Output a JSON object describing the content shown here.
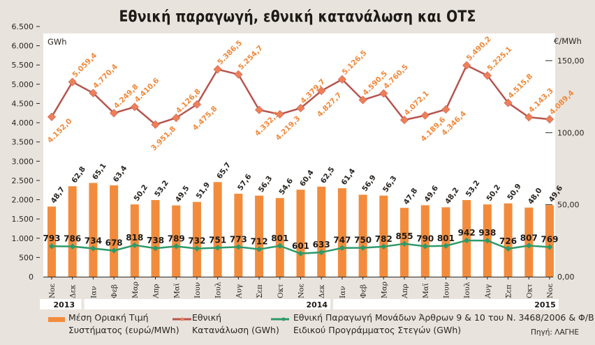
{
  "chart_data": {
    "type": "bar+line",
    "title": "Εθνική παραγωγή, εθνική κατανάλωση και ΟΤΣ",
    "left_axis": {
      "label": "GWh",
      "min": 0,
      "max": 6500,
      "ticks": [
        "0",
        "500",
        "1.000",
        "1.500",
        "2.000",
        "2.500",
        "3.000",
        "3.500",
        "4.000",
        "4.500",
        "5.000",
        "5.500",
        "6.000",
        "6.500"
      ],
      "tick_values": [
        0,
        500,
        1000,
        1500,
        2000,
        2500,
        3000,
        3500,
        4000,
        4500,
        5000,
        5500,
        6000,
        6500
      ]
    },
    "right_axis": {
      "label": "€/MWh",
      "min": 0,
      "max": 150,
      "ticks": [
        "0,00",
        "50,00",
        "100,00",
        "150,00"
      ],
      "tick_values": [
        0,
        50,
        100,
        150
      ]
    },
    "categories": [
      "Νοε",
      "Δεκ",
      "Ιαν",
      "Φεβ",
      "Μαρ",
      "Απρ",
      "Μαϊ",
      "Ιουν",
      "Ιουλ",
      "Αυγ",
      "Σεπ",
      "Οκτ",
      "Νοε",
      "Δεκ",
      "Ιαν",
      "Φεβ",
      "Μαρ",
      "Απρ",
      "Μαϊ",
      "Ιουν",
      "Ιουλ",
      "Αυγ",
      "Σεπ",
      "Οκτ",
      "Νοε"
    ],
    "years": [
      {
        "label": "2013",
        "span": [
          0,
          1
        ]
      },
      {
        "label": "2014",
        "span": [
          2,
          13
        ]
      },
      {
        "label": "2015",
        "span": [
          14,
          24
        ]
      }
    ],
    "series": [
      {
        "name": "Μέση Οριακή Τιμή Συστήματος (ευρώ/MWh)",
        "type": "bar",
        "axis": "right",
        "color": "#f28c3c",
        "values": [
          48.7,
          62.8,
          65.1,
          63.4,
          50.2,
          53.2,
          49.5,
          51.9,
          65.7,
          57.6,
          56.3,
          54.6,
          60.4,
          62.5,
          61.4,
          56.9,
          56.3,
          47.8,
          49.6,
          48.2,
          53.2,
          50.2,
          50.9,
          48.0,
          49.6
        ],
        "labels": [
          "48,7",
          "62,8",
          "65,1",
          "63,4",
          "50,2",
          "53,2",
          "49,5",
          "51,9",
          "65,7",
          "57,6",
          "56,3",
          "54,6",
          "60,4",
          "62,5",
          "61,4",
          "56,9",
          "56,3",
          "47,8",
          "49,6",
          "48,2",
          "53,2",
          "50,2",
          "50,9",
          "48,0",
          "49,6"
        ]
      },
      {
        "name": "Εθνική Κατανάλωση (GWh)",
        "type": "line",
        "axis": "left",
        "color": "#b5554e",
        "marker_color": "#ef7f57",
        "values": [
          4152.0,
          5059.4,
          4770.4,
          4249.8,
          4410.6,
          3951.8,
          4126.8,
          4475.8,
          5386.5,
          5254.7,
          4332.3,
          4219.3,
          4379.7,
          4827.7,
          5126.5,
          4590.5,
          4760.5,
          4072.1,
          4189.6,
          4346.4,
          5490.2,
          5225.1,
          4515.8,
          4143.3,
          4089.4
        ],
        "labels": [
          "4.152,0",
          "5.059,4",
          "4.770,4",
          "4.249,8",
          "4.410,6",
          "3.951,8",
          "4.126,8",
          "4.475,8",
          "5.386,5",
          "5.254,7",
          "4.332,3",
          "4.219,3",
          "4.379,7",
          "4.827,7",
          "5.126,5",
          "4.590,5",
          "4.760,5",
          "4.072,1",
          "4.189,6",
          "4.346,4",
          "5.490,2",
          "5.225,1",
          "4.515,8",
          "4.143,3",
          "4.089,4"
        ]
      },
      {
        "name": "Εθνική Παραγωγή Μονάδων Άρθρων 9 & 10 του Ν. 3468/2006 & Φ/Β Ειδικού Προγράμματος Στεγών (GWh)",
        "type": "line",
        "axis": "left",
        "color": "#2e9a6a",
        "values": [
          793,
          786,
          734,
          678,
          818,
          738,
          789,
          732,
          751,
          773,
          712,
          801,
          601,
          633,
          747,
          750,
          782,
          855,
          790,
          801,
          942,
          938,
          726,
          807,
          769
        ],
        "labels": [
          "793",
          "786",
          "734",
          "678",
          "818",
          "738",
          "789",
          "732",
          "751",
          "773",
          "712",
          "801",
          "601",
          "633",
          "747",
          "750",
          "782",
          "855",
          "790",
          "801",
          "942",
          "938",
          "726",
          "807",
          "769"
        ]
      }
    ],
    "legend": {
      "placement": "bottom",
      "items": [
        {
          "line1": "Μέση Οριακή Τιμή",
          "line2": "Συστήματος (ευρώ/MWh)"
        },
        {
          "line1": "Εθνική",
          "line2": "Κατανάλωση (GWh)"
        },
        {
          "line1": "Εθνική Παραγωγή Μονάδων Άρθρων 9 & 10 του Ν. 3468/2006 & Φ/Β",
          "line2": "Ειδικού Προγράμματος Στεγών (GWh)"
        }
      ]
    },
    "source": "Πηγή: ΛΑΓΗΕ",
    "grid": false
  }
}
